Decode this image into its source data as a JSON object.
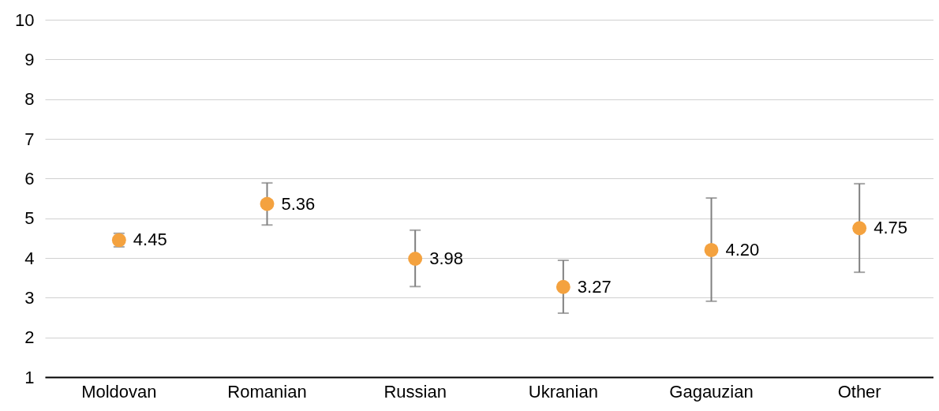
{
  "chart_data": {
    "type": "scatter",
    "categories": [
      "Moldovan",
      "Romanian",
      "Russian",
      "Ukranian",
      "Gagauzian",
      "Other"
    ],
    "series": [
      {
        "color": "#f4a23f",
        "values": [
          4.45,
          5.36,
          3.98,
          3.27,
          4.2,
          4.75
        ],
        "errors": [
          [
            4.28,
            4.62
          ],
          [
            4.83,
            5.89
          ],
          [
            3.28,
            4.7
          ],
          [
            2.61,
            3.94
          ],
          [
            2.91,
            5.51
          ],
          [
            3.64,
            5.87
          ]
        ],
        "value_labels": [
          "4.45",
          "5.36",
          "3.98",
          "3.27",
          "4.20",
          "4.75"
        ]
      }
    ],
    "ylim": [
      1,
      10
    ],
    "yticks": [
      1,
      2,
      3,
      4,
      5,
      6,
      7,
      8,
      9,
      10
    ],
    "grid": "y",
    "marker": "circle"
  }
}
